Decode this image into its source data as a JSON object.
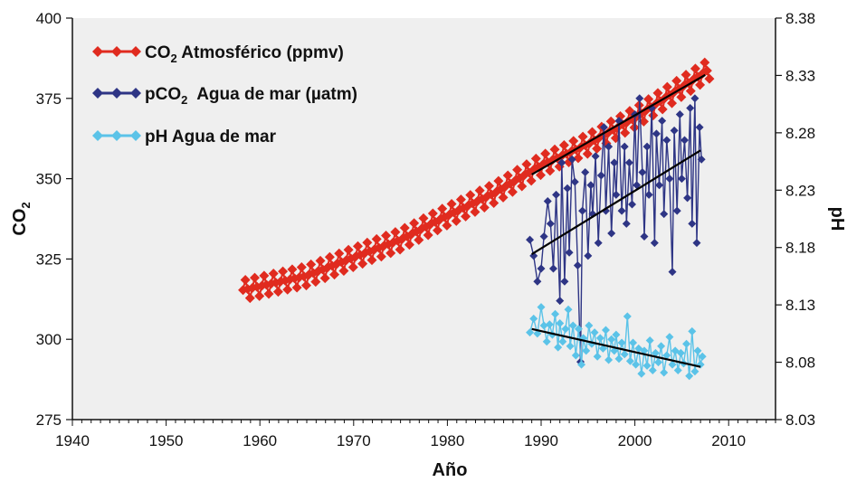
{
  "chart_data": {
    "type": "line",
    "xlabel": "Año",
    "ylabel_left": "CO",
    "ylabel_left_sub": "2",
    "ylabel_right": "pH",
    "xlim": [
      1940,
      2015
    ],
    "ylim_left": [
      275,
      400
    ],
    "ylim_right": [
      8.03,
      8.38
    ],
    "x_ticks": [
      "1940",
      "1950",
      "1960",
      "1970",
      "1980",
      "1990",
      "2000",
      "2010"
    ],
    "y_left_ticks": [
      "275",
      "300",
      "325",
      "350",
      "375",
      "400"
    ],
    "y_right_ticks": [
      "8.03",
      "8.08",
      "8.13",
      "8.18",
      "8.23",
      "8.28",
      "8.33",
      "8.38"
    ],
    "legend_position": "top-left",
    "grid": false,
    "background": "#efefef",
    "series": [
      {
        "key": "atm",
        "name_main": "CO",
        "name_sub": "2",
        "name_rest": " Atmosférico (ppmv)",
        "color": "#e02b1f",
        "axis": "left",
        "x_start": 1958.2,
        "x_end": 2008.0,
        "trend_points": [
          [
            1958,
            315.2
          ],
          [
            1965,
            319.8
          ],
          [
            1970,
            325.5
          ],
          [
            1975,
            331.0
          ],
          [
            1980,
            338.5
          ],
          [
            1985,
            345.5
          ],
          [
            1990,
            354.2
          ],
          [
            1995,
            360.8
          ],
          [
            2000,
            369.0
          ],
          [
            2005,
            378.5
          ],
          [
            2008,
            384.2
          ]
        ],
        "seasonal_amplitude": 3.0,
        "trend": [
          [
            1989,
            351.3
          ],
          [
            2007.5,
            382.3
          ]
        ]
      },
      {
        "key": "pco2",
        "name_main": "pCO",
        "name_sub": "2",
        "name_rest": "  Agua de mar (µatm)",
        "color": "#2e3585",
        "axis": "left",
        "points": [
          [
            1988.8,
            331
          ],
          [
            1989.2,
            326
          ],
          [
            1989.6,
            318
          ],
          [
            1990.0,
            322
          ],
          [
            1990.3,
            332
          ],
          [
            1990.7,
            343
          ],
          [
            1991.0,
            336
          ],
          [
            1991.3,
            322
          ],
          [
            1991.6,
            345
          ],
          [
            1992.0,
            312
          ],
          [
            1992.2,
            355
          ],
          [
            1992.5,
            318
          ],
          [
            1992.8,
            347
          ],
          [
            1993.0,
            327
          ],
          [
            1993.3,
            356
          ],
          [
            1993.6,
            349
          ],
          [
            1993.9,
            323
          ],
          [
            1994.2,
            293
          ],
          [
            1994.4,
            340
          ],
          [
            1994.7,
            352
          ],
          [
            1995.0,
            326
          ],
          [
            1995.3,
            348
          ],
          [
            1995.5,
            339
          ],
          [
            1995.8,
            357
          ],
          [
            1996.1,
            330
          ],
          [
            1996.4,
            351
          ],
          [
            1996.7,
            366
          ],
          [
            1996.9,
            340
          ],
          [
            1997.2,
            360
          ],
          [
            1997.5,
            333
          ],
          [
            1997.8,
            355
          ],
          [
            1998.0,
            345
          ],
          [
            1998.3,
            368
          ],
          [
            1998.6,
            340
          ],
          [
            1998.9,
            360
          ],
          [
            1999.1,
            336
          ],
          [
            1999.4,
            355
          ],
          [
            1999.7,
            342
          ],
          [
            2000.0,
            370
          ],
          [
            2000.2,
            348
          ],
          [
            2000.5,
            375
          ],
          [
            2000.8,
            352
          ],
          [
            2001.0,
            332
          ],
          [
            2001.3,
            360
          ],
          [
            2001.5,
            345
          ],
          [
            2001.8,
            372
          ],
          [
            2002.1,
            330
          ],
          [
            2002.3,
            364
          ],
          [
            2002.6,
            348
          ],
          [
            2002.9,
            368
          ],
          [
            2003.1,
            339
          ],
          [
            2003.4,
            362
          ],
          [
            2003.7,
            350
          ],
          [
            2004.0,
            321
          ],
          [
            2004.2,
            365
          ],
          [
            2004.5,
            340
          ],
          [
            2004.8,
            370
          ],
          [
            2005.0,
            350
          ],
          [
            2005.3,
            362
          ],
          [
            2005.6,
            344
          ],
          [
            2005.9,
            372
          ],
          [
            2006.1,
            336
          ],
          [
            2006.4,
            375
          ],
          [
            2006.6,
            330
          ],
          [
            2006.9,
            366
          ],
          [
            2007.1,
            356
          ]
        ],
        "trend": [
          [
            1989,
            326.5
          ],
          [
            2007,
            358.8
          ]
        ]
      },
      {
        "key": "ph",
        "name_main": "pH Agua de mar",
        "name_sub": "",
        "name_rest": "",
        "color": "#5bc3e8",
        "axis": "right",
        "points": [
          [
            1988.8,
            8.106
          ],
          [
            1989.2,
            8.118
          ],
          [
            1989.6,
            8.105
          ],
          [
            1990.0,
            8.128
          ],
          [
            1990.3,
            8.112
          ],
          [
            1990.6,
            8.098
          ],
          [
            1990.9,
            8.113
          ],
          [
            1991.2,
            8.104
          ],
          [
            1991.5,
            8.122
          ],
          [
            1991.8,
            8.093
          ],
          [
            1992.0,
            8.114
          ],
          [
            1992.3,
            8.098
          ],
          [
            1992.6,
            8.109
          ],
          [
            1992.9,
            8.126
          ],
          [
            1993.1,
            8.094
          ],
          [
            1993.4,
            8.112
          ],
          [
            1993.7,
            8.086
          ],
          [
            1994.0,
            8.109
          ],
          [
            1994.3,
            8.078
          ],
          [
            1994.5,
            8.101
          ],
          [
            1994.8,
            8.09
          ],
          [
            1995.1,
            8.112
          ],
          [
            1995.4,
            8.096
          ],
          [
            1995.7,
            8.106
          ],
          [
            1996.0,
            8.085
          ],
          [
            1996.3,
            8.101
          ],
          [
            1996.6,
            8.092
          ],
          [
            1996.9,
            8.108
          ],
          [
            1997.2,
            8.082
          ],
          [
            1997.5,
            8.1
          ],
          [
            1997.8,
            8.09
          ],
          [
            1998.0,
            8.104
          ],
          [
            1998.3,
            8.083
          ],
          [
            1998.6,
            8.097
          ],
          [
            1998.9,
            8.087
          ],
          [
            1999.2,
            8.12
          ],
          [
            1999.5,
            8.081
          ],
          [
            1999.8,
            8.097
          ],
          [
            2000.1,
            8.078
          ],
          [
            2000.4,
            8.092
          ],
          [
            2000.7,
            8.07
          ],
          [
            2001.0,
            8.09
          ],
          [
            2001.3,
            8.077
          ],
          [
            2001.6,
            8.099
          ],
          [
            2001.9,
            8.073
          ],
          [
            2002.2,
            8.088
          ],
          [
            2002.5,
            8.08
          ],
          [
            2002.8,
            8.094
          ],
          [
            2003.1,
            8.071
          ],
          [
            2003.4,
            8.086
          ],
          [
            2003.7,
            8.102
          ],
          [
            2004.0,
            8.078
          ],
          [
            2004.3,
            8.09
          ],
          [
            2004.6,
            8.073
          ],
          [
            2004.9,
            8.088
          ],
          [
            2005.2,
            8.079
          ],
          [
            2005.5,
            8.096
          ],
          [
            2005.8,
            8.068
          ],
          [
            2006.1,
            8.107
          ],
          [
            2006.4,
            8.072
          ],
          [
            2006.7,
            8.09
          ],
          [
            2007.0,
            8.078
          ],
          [
            2007.2,
            8.085
          ]
        ],
        "trend": [
          [
            1989,
            8.109
          ],
          [
            2007,
            8.076
          ]
        ]
      }
    ]
  }
}
